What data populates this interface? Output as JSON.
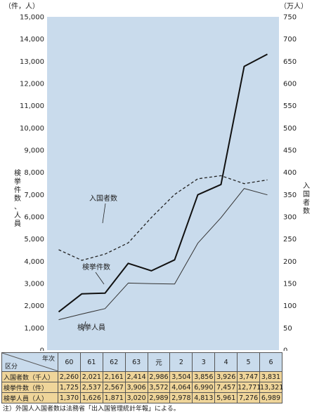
{
  "chart_data": {
    "type": "line",
    "left_axis": {
      "unit": "（件，人）",
      "label_chars": [
        "検",
        "挙",
        "件",
        "数",
        "、",
        "人",
        "員"
      ],
      "ylim": [
        0,
        15000
      ],
      "ticks": [
        "0",
        "1,000",
        "2,000",
        "3,000",
        "4,000",
        "5,000",
        "6,000",
        "7,000",
        "8,000",
        "9,000",
        "10,000",
        "11,000",
        "12,000",
        "13,000",
        "14,000",
        "15,000"
      ]
    },
    "right_axis": {
      "unit": "（万人）",
      "label_chars": [
        "入",
        "国",
        "者",
        "数"
      ],
      "ylim": [
        0,
        750
      ],
      "ticks": [
        "0",
        "50",
        "100",
        "150",
        "200",
        "250",
        "300",
        "350",
        "400",
        "450",
        "500",
        "550",
        "600",
        "650",
        "700",
        "750"
      ]
    },
    "x": [
      "60",
      "61",
      "62",
      "63",
      "元",
      "2",
      "3",
      "4",
      "5",
      "6"
    ],
    "series": [
      {
        "name": "入国者数",
        "axis": "right",
        "style": "dashed",
        "color": "#222222",
        "values": [
          226.0,
          202.1,
          216.1,
          241.4,
          298.6,
          350.4,
          385.6,
          392.6,
          374.7,
          383.1
        ]
      },
      {
        "name": "検挙件数",
        "axis": "left",
        "style": "thick",
        "color": "#111111",
        "values": [
          1725,
          2537,
          2567,
          3906,
          3572,
          4064,
          6990,
          7457,
          12771,
          13321
        ]
      },
      {
        "name": "検挙人員",
        "axis": "left",
        "style": "thin",
        "color": "#333333",
        "values": [
          1370,
          1626,
          1871,
          3020,
          2989,
          2978,
          4813,
          5961,
          7276,
          6989
        ]
      }
    ],
    "plot_bg": "#c9dbec"
  },
  "table": {
    "corner_top": "年次",
    "corner_bottom": "区分",
    "years": [
      "60",
      "61",
      "62",
      "63",
      "元",
      "2",
      "3",
      "4",
      "5",
      "6"
    ],
    "rows": [
      {
        "label": "入国者数（千人）",
        "values": [
          "2,260",
          "2,021",
          "2,161",
          "2,414",
          "2,986",
          "3,504",
          "3,856",
          "3,926",
          "3,747",
          "3,831"
        ]
      },
      {
        "label": "検挙件数（件）",
        "values": [
          "1,725",
          "2,537",
          "2,567",
          "3,906",
          "3,572",
          "4,064",
          "6,990",
          "7,457",
          "12,771",
          "13,321"
        ]
      },
      {
        "label": "検挙人員（人）",
        "values": [
          "1,370",
          "1,626",
          "1,871",
          "3,020",
          "2,989",
          "2,978",
          "4,813",
          "5,961",
          "7,276",
          "6,989"
        ]
      }
    ],
    "header_bg": "#c9dbec",
    "row_bg": "#efd59a"
  },
  "note": "注）外国人入国者数は法務省「出入国管理統計年報」による。"
}
